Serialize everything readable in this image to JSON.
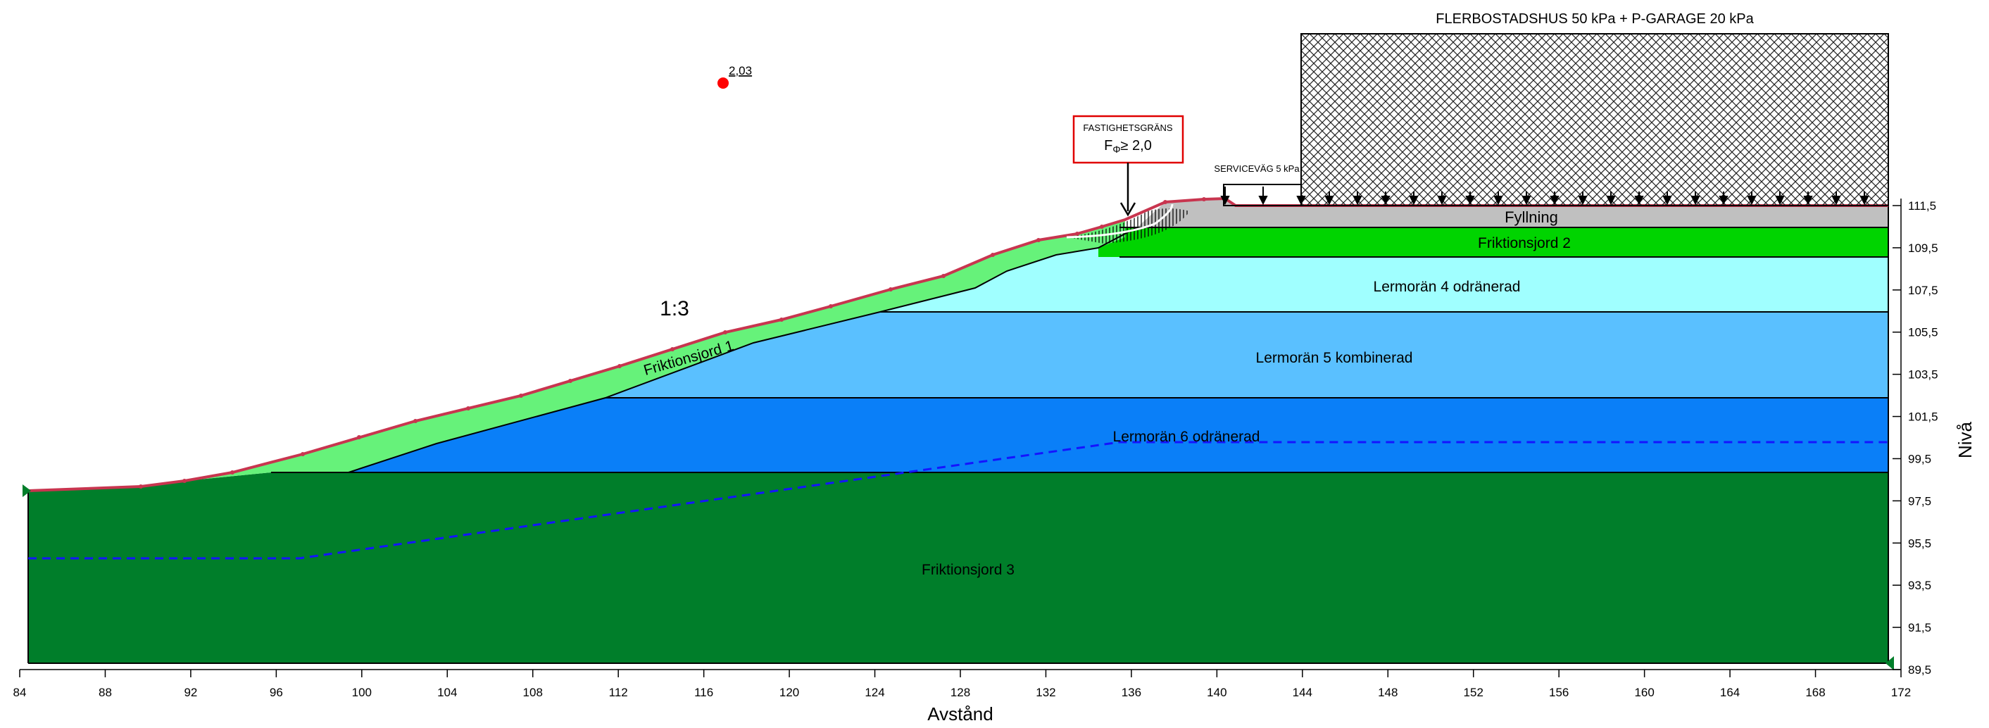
{
  "diagram": {
    "xlabel": "Avstånd",
    "ylabel": "Nivå",
    "x_ticks": [
      84,
      88,
      92,
      96,
      100,
      104,
      108,
      112,
      116,
      120,
      124,
      128,
      132,
      136,
      140,
      144,
      148,
      152,
      156,
      160,
      164,
      168,
      172
    ],
    "y_ticks": [
      "89,5",
      "91,5",
      "93,5",
      "95,5",
      "97,5",
      "99,5",
      "101,5",
      "103,5",
      "105,5",
      "107,5",
      "109,5",
      "111,5"
    ],
    "y_tick_values": [
      89.5,
      91.5,
      93.5,
      95.5,
      97.5,
      99.5,
      101.5,
      103.5,
      105.5,
      107.5,
      109.5,
      111.5
    ],
    "load_label": "FLERBOSTADSHUS 50 kPa + P-GARAGE 20 kPa",
    "service_label": "SERVICEVÄG 5 kPa",
    "box": {
      "title": "FASTIGHETSGRÄNS",
      "formula_main": "F",
      "formula_sub": "Φ",
      "formula_rest": "≥ 2,0"
    },
    "slope_label": "1:3",
    "safety_factor": "2,03",
    "layers": [
      {
        "key": "fyllning",
        "label": "Fyllning",
        "color": "#c0c0c0"
      },
      {
        "key": "friktionsjord2",
        "label": "Friktionsjord 2",
        "color": "#00d400"
      },
      {
        "key": "lermoran4",
        "label": "Lermorän 4 odränerad",
        "color": "#a0ffff"
      },
      {
        "key": "lermoran5",
        "label": "Lermorän 5 kombinerad",
        "color": "#5ac0ff"
      },
      {
        "key": "lermoran6",
        "label": "Lermorän 6 odränerad",
        "color": "#0a7ff8"
      },
      {
        "key": "friktionsjord3",
        "label": "Friktionsjord 3",
        "color": "#007e2a"
      },
      {
        "key": "friktionsjord1",
        "label": "Friktionsjord 1",
        "color": "#66f27a"
      }
    ],
    "colors": {
      "surface": "#c8354f",
      "water": "#1414ff",
      "failure": "#ff0000"
    }
  }
}
